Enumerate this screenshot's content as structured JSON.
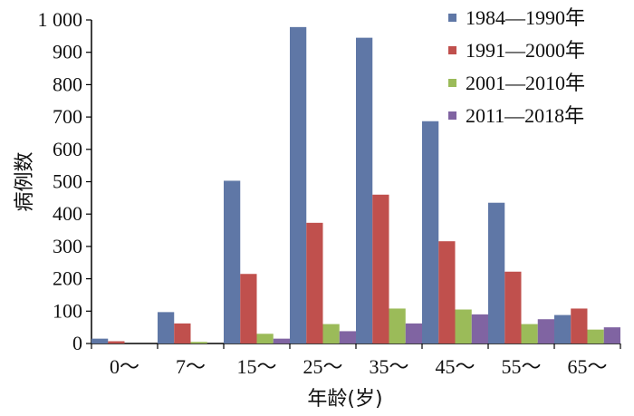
{
  "chart_data": {
    "type": "bar",
    "title": "",
    "xlabel": "年龄(岁)",
    "ylabel": "病例数",
    "categories": [
      "0～",
      "7～",
      "15～",
      "25～",
      "35～",
      "45～",
      "55～",
      "65～"
    ],
    "ylim": [
      0,
      1000
    ],
    "yticks": [
      0,
      100,
      200,
      300,
      400,
      500,
      600,
      700,
      800,
      900,
      1000
    ],
    "ytick_labels": [
      "0",
      "100",
      "200",
      "300",
      "400",
      "500",
      "600",
      "700",
      "800",
      "900",
      "1 000"
    ],
    "grid": false,
    "legend_position": "top-right",
    "series": [
      {
        "name": "1984—1990年",
        "color": "#5F77A6",
        "values": [
          15,
          97,
          503,
          978,
          945,
          687,
          435,
          88
        ]
      },
      {
        "name": "1991—2000年",
        "color": "#C0504D",
        "values": [
          7,
          62,
          215,
          373,
          460,
          316,
          222,
          108
        ]
      },
      {
        "name": "2001—2010年",
        "color": "#9BBB59",
        "values": [
          0,
          5,
          30,
          60,
          108,
          105,
          60,
          43
        ]
      },
      {
        "name": "2011—2018年",
        "color": "#8064A2",
        "values": [
          0,
          0,
          15,
          38,
          62,
          90,
          75,
          50
        ]
      }
    ]
  }
}
